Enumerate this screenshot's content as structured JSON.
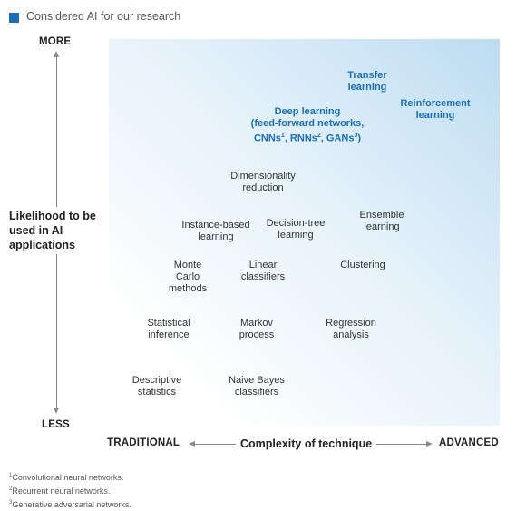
{
  "legend": {
    "label": "Considered AI for our research",
    "swatch_color": "#1b6fb5"
  },
  "y_axis": {
    "top": "MORE",
    "bottom": "LESS",
    "label": "Likelihood to be used in AI applications"
  },
  "x_axis": {
    "left": "TRADITIONAL",
    "center": "Complexity of technique",
    "right": "ADVANCED"
  },
  "techniques": {
    "transfer": "Transfer learning",
    "reinforcement": "Reinforcement learning",
    "deep_line1": "Deep learning",
    "deep_line2": "(feed-forward networks,",
    "deep_line3_a": "CNNs",
    "deep_line3_a_sup": "1",
    "deep_line3_b": ", RNNs",
    "deep_line3_b_sup": "2",
    "deep_line3_c": ", GANs",
    "deep_line3_c_sup": "3",
    "deep_line3_d": ")",
    "dimensionality": "Dimensionality reduction",
    "instance": "Instance-based learning",
    "decision_tree": "Decision-tree learning",
    "ensemble": "Ensemble learning",
    "monte_carlo": "Monte Carlo methods",
    "linear": "Linear classifiers",
    "clustering": "Clustering",
    "statistical": "Statistical inference",
    "markov": "Markov process",
    "regression": "Regression analysis",
    "descriptive": "Descriptive statistics",
    "naive_bayes": "Naive Bayes classifiers"
  },
  "footnotes": [
    {
      "sup": "1",
      "text": "Convolutional neural networks."
    },
    {
      "sup": "2",
      "text": "Recurrent neural networks."
    },
    {
      "sup": "3",
      "text": "Generative adversarial networks."
    }
  ]
}
